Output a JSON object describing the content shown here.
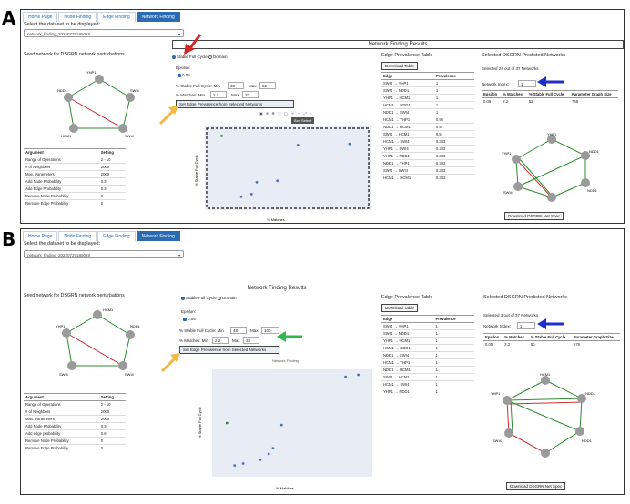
{
  "panelA": {
    "label": "A",
    "tabs": [
      "Home Page",
      "Node Finding",
      "Edge Finding",
      "Network Finding"
    ],
    "active_tab": "Network Finding",
    "dataset_prompt": "Select the dataset to be displayed:",
    "dataset_value": "network_finding_20220729185028",
    "banner": "Network Finding Results",
    "seed_title": "Seed network for DSGRN network perturbations",
    "seed_nodes": [
      "YHP1",
      "NDD1",
      "SWI4",
      "HCM1",
      "SWI4"
    ],
    "params_headers": [
      "Argument",
      "Setting"
    ],
    "params": [
      [
        "Range of Operations",
        "2 - 10"
      ],
      [
        "# of Neighbors",
        "2000"
      ],
      [
        "Max. Parameters",
        "2000"
      ],
      [
        "Add Node Probability",
        "0.3"
      ],
      [
        "Add Edge Probability",
        "0.3"
      ],
      [
        "Remove Node Probability",
        "0"
      ],
      [
        "Remove Edge Probability",
        "0"
      ]
    ],
    "radio1": "Stable Full Cycle",
    "radio2": "Domain",
    "epsilon_label": "Epsilon:",
    "epsilon_value": "0.05",
    "sfc_label": "% Stable Full Cycle: Min",
    "sfc_min": "33",
    "sfc_max_label": "Max",
    "sfc_max": "52",
    "matches_label": "% Matches: Min",
    "matches_min": "2.2",
    "matches_max_label": "Max",
    "matches_max": "33",
    "set_button": "Set Edge Prevalence from Selected Networks",
    "toolbar_tip": "Box Select",
    "xlabel": "% Matches",
    "ylabel": "% Stable Full Cycle",
    "edge_title": "Edge Prevalence Table",
    "download_button": "Download Table",
    "edge_headers": [
      "Edge",
      "Prevalence"
    ],
    "edge_rows": [
      [
        "SWI4 → YHP1",
        "1"
      ],
      [
        "SWI4 → NDD1",
        "1"
      ],
      [
        "YHP1 → HCM1",
        "1"
      ],
      [
        "HCM1 → NDD1",
        "1"
      ],
      [
        "NDD1 → SWI4",
        "1"
      ],
      [
        "HCM1 → YHP1",
        "0.95"
      ],
      [
        "NDD1 → HCM1",
        "0.9"
      ],
      [
        "SWI4 → HCM1",
        "0.5"
      ],
      [
        "HCM1 → SWI4",
        "0.333"
      ],
      [
        "YHP1 → SWI4",
        "0.333"
      ],
      [
        "YHP1 → NDD1",
        "0.333"
      ],
      [
        "NDD1 → YHP1",
        "0.333"
      ],
      [
        "SWI4 → SWI4",
        "0.333"
      ],
      [
        "HCM1 → HCM1",
        "0.333"
      ]
    ],
    "dsgrn_title": "Selected DSGRN Predicted Networks",
    "dsgrn_count": "Selected 24 out of 37 Networks",
    "network_index_label": "Network Index:",
    "network_index": "1",
    "net_headers": [
      "Epsilon",
      "% Matches",
      "% Stable Full Cycle",
      "Parameter Graph Size"
    ],
    "net_row": [
      "0.05",
      "2.2",
      "52",
      "768"
    ],
    "net_nodes": [
      "YHP1",
      "NDD1",
      "NDD1",
      "YHP1",
      "SWI4"
    ],
    "download_networks": "Download DSGRN Net Spec"
  },
  "panelB": {
    "label": "B",
    "tabs": [
      "Home Page",
      "Node Finding",
      "Edge Finding",
      "Network Finding"
    ],
    "active_tab": "Network Finding",
    "dataset_prompt": "Select the dataset to be displayed:",
    "dataset_value": "network_finding_20220729185028",
    "banner": "Network Finding Results",
    "seed_title": "Seed network for DSGRN network perturbations",
    "seed_nodes": [
      "HCM1",
      "YHP1",
      "SWI4",
      "NDD1",
      "SWI4"
    ],
    "params_headers": [
      "Argument",
      "Setting"
    ],
    "params": [
      [
        "Range of Operations",
        "2 - 10"
      ],
      [
        "# of Neighbors",
        "2000"
      ],
      [
        "Max. Parameters",
        "2000"
      ],
      [
        "Add Node Probability",
        "0.3"
      ],
      [
        "Add edge probability",
        "0.6"
      ],
      [
        "Remove Node Probability",
        "0"
      ],
      [
        "Remove Edge Probability",
        "0"
      ]
    ],
    "radio1": "Stable Full Cycle",
    "radio2": "Domain",
    "epsilon_label": "Epsilon:",
    "epsilon_value": "0.05",
    "sfc_label": "% Stable Full Cycle: Min",
    "sfc_min": "48",
    "sfc_max_label": "Max",
    "sfc_max": "100",
    "matches_label": "% Matches: Min",
    "matches_min": "2.2",
    "matches_max_label": "Max",
    "matches_max": "33",
    "set_button": "Set Edge Prevalence from Selected Networks",
    "plot_title": "Network Finding",
    "xlabel": "% Matches",
    "ylabel": "% Stable Full Cycle",
    "edge_title": "Edge Prevalence Table",
    "download_button": "Download Table",
    "edge_headers": [
      "Edge",
      "Prevalence"
    ],
    "edge_rows": [
      [
        "SWI4 → YHP1",
        "1"
      ],
      [
        "SWI4 → NDD1",
        "1"
      ],
      [
        "YHP1 → HCM1",
        "1"
      ],
      [
        "HCM1 → NDD1",
        "1"
      ],
      [
        "NDD1 → SWI4",
        "1"
      ],
      [
        "HCM1 → YHP1",
        "1"
      ],
      [
        "NDD1 → HCM1",
        "1"
      ],
      [
        "SWI4 → HCM1",
        "1"
      ],
      [
        "HCM1 → SWI4",
        "1"
      ],
      [
        "YHP1 → NDD1",
        "1"
      ]
    ],
    "dsgrn_title": "Selected DSGRN Predicted Networks",
    "dsgrn_count": "Selected 3 out of 37 Networks",
    "network_index_label": "Network Index:",
    "network_index": "1",
    "net_headers": [
      "Epsilon",
      "% Matches",
      "% Stable Full Cycle",
      "Parameter Graph Size"
    ],
    "net_row": [
      "0.05",
      "2.2",
      "50",
      "576"
    ],
    "net_nodes": [
      "HCM1",
      "NDD1",
      "NDD1",
      "SWI4",
      "YHP1"
    ],
    "download_networks": "Download DSGRN Net Spec"
  },
  "colors": {
    "accent": "#2a6bb1",
    "red_arrow": "#d42424",
    "yellow_arrow": "#f4b942",
    "blue_arrow": "#1f2fc9",
    "green_arrow": "#2db84a",
    "pos_edge": "#2e8b2e",
    "neg_edge": "#d03030",
    "node": "#9a9a9a"
  },
  "chart_data": [
    {
      "type": "scatter",
      "panel": "A",
      "xlabel": "% Matches",
      "ylabel": "% Stable Full Cycle",
      "xlim": [
        0,
        30
      ],
      "ylim": [
        0,
        55
      ],
      "x": [
        2.2,
        6,
        8,
        9,
        13,
        17,
        27
      ],
      "y": [
        52,
        6,
        8,
        17,
        18,
        45,
        46
      ]
    },
    {
      "type": "scatter",
      "panel": "B",
      "title": "Network Finding",
      "xlabel": "% Matches",
      "ylabel": "% Stable Full Cycle",
      "xlim": [
        0,
        35
      ],
      "ylim": [
        0,
        100
      ],
      "x": [
        2.2,
        4,
        6,
        10,
        12,
        13,
        15,
        30,
        33
      ],
      "y": [
        50,
        6,
        8,
        12,
        18,
        24,
        48,
        98,
        100
      ]
    }
  ]
}
